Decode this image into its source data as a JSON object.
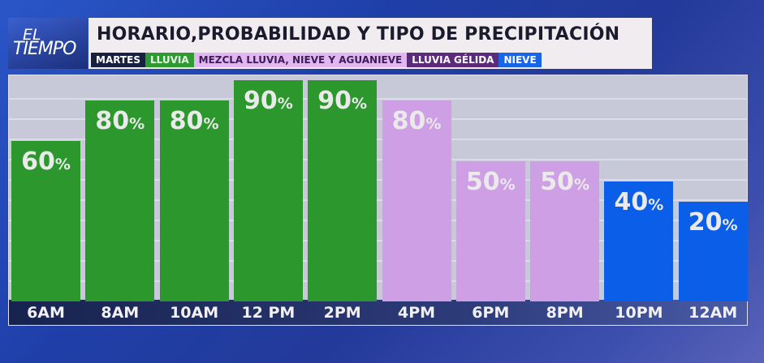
{
  "logo": {
    "line1": "EL",
    "line2": "TIEMPO"
  },
  "header": {
    "title": "HORARIO,PROBABILIDAD Y TIPO DE PRECIPITACIÓN"
  },
  "legend": [
    {
      "label": "MARTES",
      "bg": "#17203f",
      "fg": "#ffffff"
    },
    {
      "label": "LLUVIA",
      "bg": "#2f9a2f",
      "fg": "#e8f5e8"
    },
    {
      "label": "MEZCLA LLUVIA, NIEVE Y AGUANIEVE",
      "bg": "#e2b6f0",
      "fg": "#3a1d52"
    },
    {
      "label": "LLUVIA GÉLIDA",
      "bg": "#5b2a7a",
      "fg": "#ffffff"
    },
    {
      "label": "NIEVE",
      "bg": "#1a64e6",
      "fg": "#ffffff"
    }
  ],
  "chart_data": {
    "type": "bar",
    "title": "HORARIO,PROBABILIDAD Y TIPO DE PRECIPITACIÓN",
    "categories": [
      "6AM",
      "8AM",
      "10AM",
      "12 PM",
      "2PM",
      "4PM",
      "6PM",
      "8PM",
      "10PM",
      "12AM"
    ],
    "values": [
      60,
      80,
      80,
      90,
      90,
      80,
      50,
      50,
      40,
      20
    ],
    "unit": "%",
    "types": [
      "LLUVIA",
      "LLUVIA",
      "LLUVIA",
      "LLUVIA",
      "LLUVIA",
      "MEZCLA LLUVIA, NIEVE Y AGUANIEVE",
      "MEZCLA LLUVIA, NIEVE Y AGUANIEVE",
      "MEZCLA LLUVIA, NIEVE Y AGUANIEVE",
      "NIEVE",
      "NIEVE"
    ],
    "type_colors": {
      "LLUVIA": "#2c972c",
      "MEZCLA LLUVIA, NIEVE Y AGUANIEVE": "#cf9fe6",
      "NIEVE": "#0a5ee8"
    },
    "grid": true
  }
}
